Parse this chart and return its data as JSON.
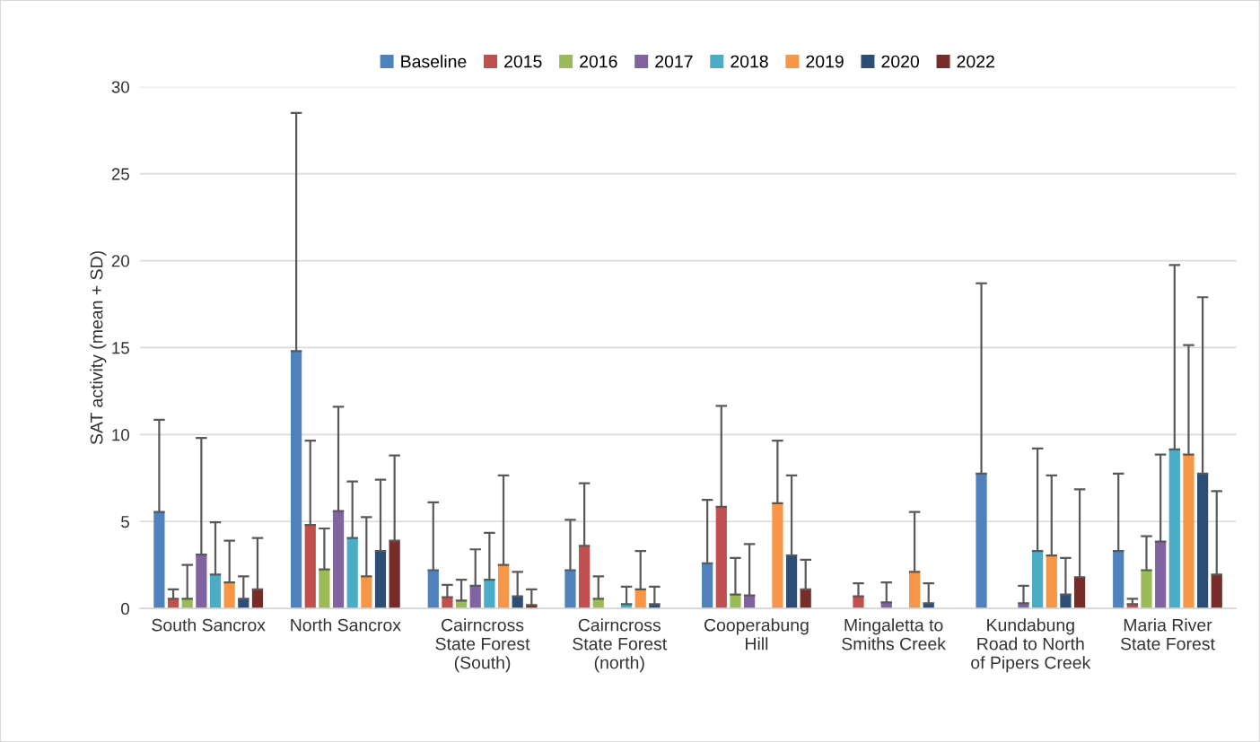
{
  "chart_data": {
    "type": "bar",
    "ylabel": "SAT activity (mean + SD)",
    "categories": [
      "South Sancrox",
      "North Sancrox",
      "Cairncross\nState Forest\n(South)",
      "Cairncross\nState Forest\n(north)",
      "Cooperabung\nHill",
      "Mingaletta to\nSmiths Creek",
      "Kundabung\nRoad to North\nof Pipers Creek",
      "Maria River\nState Forest"
    ],
    "ylim": [
      0,
      30
    ],
    "yticks": [
      0,
      5,
      10,
      15,
      20,
      25,
      30
    ],
    "grid": "y",
    "legend": "top",
    "series": [
      {
        "name": "Baseline",
        "color": "#4f81bd",
        "values": [
          5.55,
          14.8,
          2.2,
          2.2,
          2.6,
          null,
          7.75,
          3.3
        ],
        "errors": [
          [
            5.55,
            10.85
          ],
          [
            14.8,
            28.5
          ],
          [
            2.2,
            6.1
          ],
          [
            2.2,
            5.1
          ],
          [
            2.6,
            6.25
          ],
          null,
          [
            7.75,
            18.7
          ],
          [
            3.3,
            7.75
          ]
        ]
      },
      {
        "name": "2015",
        "color": "#c0504d",
        "values": [
          0.55,
          4.8,
          0.65,
          3.6,
          5.85,
          0.7,
          null,
          0.25
        ],
        "errors": [
          [
            0.55,
            1.1
          ],
          [
            4.8,
            9.65
          ],
          [
            0.65,
            1.35
          ],
          [
            3.6,
            7.2
          ],
          [
            5.85,
            11.65
          ],
          [
            0.7,
            1.45
          ],
          null,
          [
            0.25,
            0.55
          ]
        ]
      },
      {
        "name": "2016",
        "color": "#9bbb59",
        "values": [
          0.55,
          2.25,
          0.45,
          0.55,
          0.8,
          null,
          null,
          2.2
        ],
        "errors": [
          [
            0.55,
            2.5
          ],
          [
            2.25,
            4.6
          ],
          [
            0.45,
            1.65
          ],
          [
            0.55,
            1.85
          ],
          [
            0.8,
            2.9
          ],
          null,
          null,
          [
            2.2,
            4.15
          ]
        ]
      },
      {
        "name": "2017",
        "color": "#8064a2",
        "values": [
          3.1,
          5.6,
          1.3,
          null,
          0.75,
          0.35,
          0.3,
          3.85
        ],
        "errors": [
          [
            3.1,
            9.8
          ],
          [
            5.6,
            11.6
          ],
          [
            1.3,
            3.4
          ],
          null,
          [
            0.75,
            3.7
          ],
          [
            0.35,
            1.5
          ],
          [
            0.3,
            1.3
          ],
          [
            3.85,
            8.85
          ]
        ]
      },
      {
        "name": "2018",
        "color": "#4bacc6",
        "values": [
          1.95,
          4.05,
          1.65,
          0.25,
          null,
          null,
          3.3,
          9.15
        ],
        "errors": [
          [
            1.95,
            4.95
          ],
          [
            4.05,
            7.3
          ],
          [
            1.65,
            4.35
          ],
          [
            0.25,
            1.25
          ],
          null,
          null,
          [
            3.3,
            9.2
          ],
          [
            9.15,
            19.75
          ]
        ]
      },
      {
        "name": "2019",
        "color": "#f79646",
        "values": [
          1.5,
          1.85,
          2.5,
          1.1,
          6.05,
          2.1,
          3.05,
          8.85
        ],
        "errors": [
          [
            1.5,
            3.9
          ],
          [
            1.85,
            5.25
          ],
          [
            2.5,
            7.65
          ],
          [
            1.1,
            3.3
          ],
          [
            6.05,
            9.65
          ],
          [
            2.1,
            5.55
          ],
          [
            3.05,
            7.65
          ],
          [
            8.85,
            15.15
          ]
        ]
      },
      {
        "name": "2020",
        "color": "#2c4d75",
        "values": [
          0.55,
          3.3,
          0.7,
          0.25,
          3.05,
          0.3,
          0.8,
          7.75
        ],
        "errors": [
          [
            0.55,
            1.85
          ],
          [
            3.3,
            7.4
          ],
          [
            0.7,
            2.1
          ],
          [
            0.25,
            1.25
          ],
          [
            3.05,
            7.65
          ],
          [
            0.3,
            1.45
          ],
          [
            0.8,
            2.9
          ],
          [
            7.75,
            17.9
          ]
        ]
      },
      {
        "name": "2022",
        "color": "#772c2a",
        "values": [
          1.1,
          3.9,
          0.2,
          null,
          1.1,
          null,
          1.8,
          1.95
        ],
        "errors": [
          [
            1.1,
            4.05
          ],
          [
            3.9,
            8.8
          ],
          [
            0.2,
            1.1
          ],
          null,
          [
            1.1,
            2.8
          ],
          null,
          [
            1.8,
            6.85
          ],
          [
            1.95,
            6.75
          ]
        ]
      }
    ]
  }
}
